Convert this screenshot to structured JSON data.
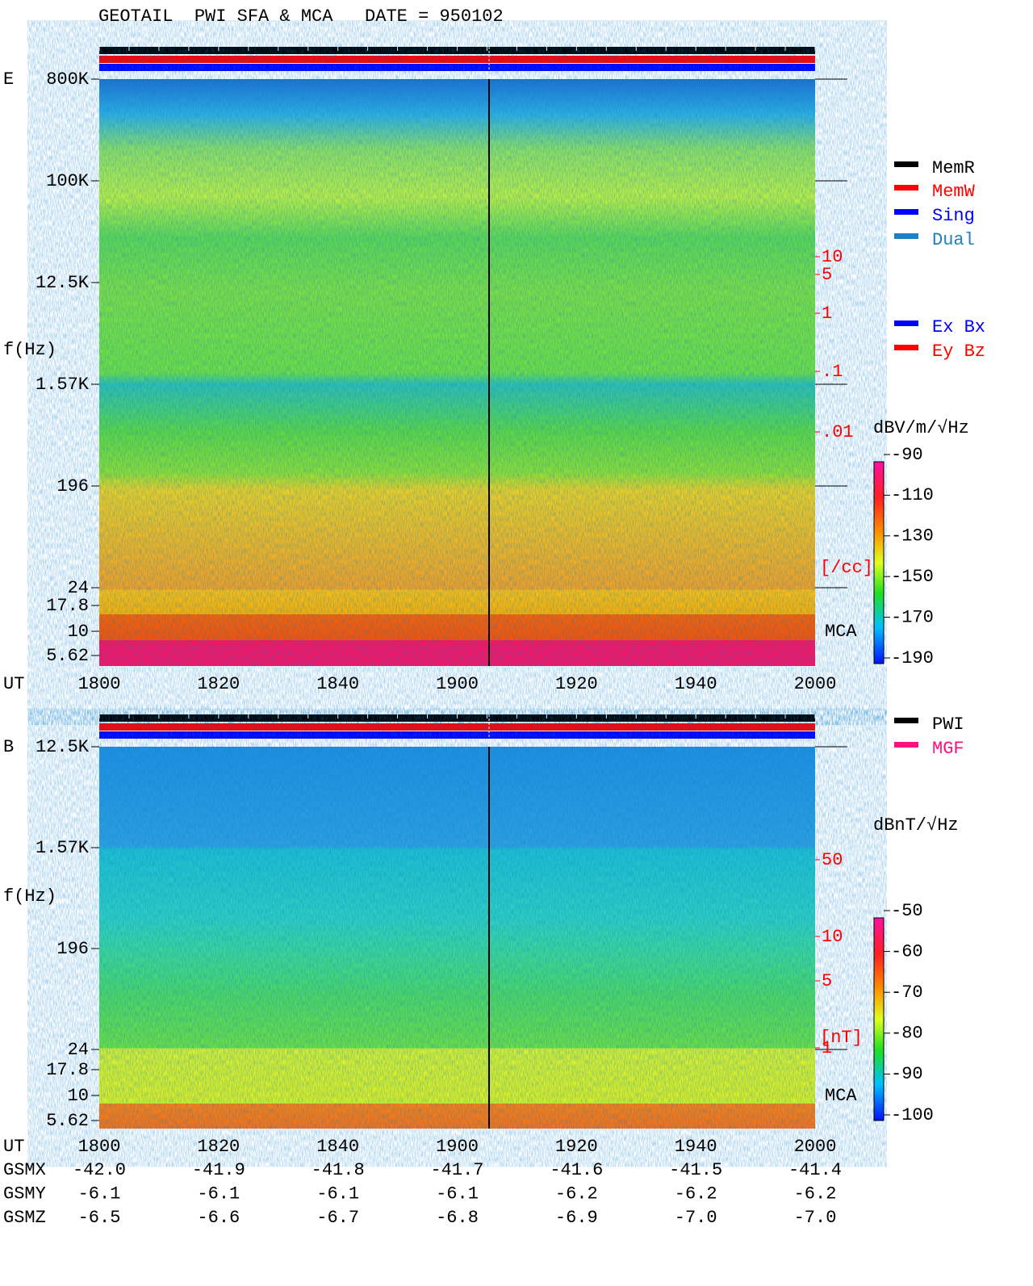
{
  "title": "GEOTAIL  PWI SFA & MCA   DATE = 950102",
  "legend_memory": [
    {
      "label": "MemR",
      "color": "#000000"
    },
    {
      "label": "MemW",
      "color": "#ff0000"
    },
    {
      "label": "Sing",
      "color": "#0000ff"
    },
    {
      "label": "Dual",
      "color": "#2080c0"
    }
  ],
  "legend_component": [
    {
      "label": "Ex Bx",
      "color": "#0000ff"
    },
    {
      "label": "Ey Bz",
      "color": "#ff0000"
    }
  ],
  "legend_instrument": [
    {
      "label": "PWI",
      "color": "#000000"
    },
    {
      "label": "MGF",
      "color": "#ff1080"
    }
  ],
  "panels": [
    {
      "label": "E",
      "y_axis_label": "f(Hz)",
      "frequency_ticks": [
        "800K",
        "100K",
        "12.5K",
        "1.57K",
        "196",
        "24",
        "17.8",
        "10",
        "5.62"
      ],
      "band_label": "MCA",
      "density_ticks": [
        "10",
        "5",
        "1",
        ".1",
        ".01"
      ],
      "density_unit": "[/cc]",
      "colorbar_title": "dBV/m/√Hz",
      "colorbar_ticks": [
        "-90",
        "-110",
        "-130",
        "-150",
        "-170",
        "-190"
      ],
      "time_axis_label": "UT",
      "time_ticks": [
        "1800",
        "1820",
        "1840",
        "1900",
        "1920",
        "1940",
        "2000"
      ]
    },
    {
      "label": "B",
      "y_axis_label": "f(Hz)",
      "frequency_ticks": [
        "12.5K",
        "1.57K",
        "196",
        "24",
        "17.8",
        "10",
        "5.62"
      ],
      "band_label": "MCA",
      "density_ticks": [
        "50",
        "10",
        "5",
        "1"
      ],
      "density_unit": "[nT]",
      "colorbar_title": "dBnT/√Hz",
      "colorbar_ticks": [
        "-50",
        "-60",
        "-70",
        "-80",
        "-90",
        "-100"
      ],
      "time_axis_label": "UT",
      "time_ticks": [
        "1800",
        "1820",
        "1840",
        "1900",
        "1920",
        "1940",
        "2000"
      ]
    }
  ],
  "orbit": [
    {
      "label": "GSMX",
      "values": [
        "-42.0",
        "-41.9",
        "-41.8",
        "-41.7",
        "-41.6",
        "-41.5",
        "-41.4"
      ]
    },
    {
      "label": "GSMY",
      "values": [
        "-6.1",
        "-6.1",
        "-6.1",
        "-6.1",
        "-6.2",
        "-6.2",
        "-6.2"
      ]
    },
    {
      "label": "GSMZ",
      "values": [
        "-6.5",
        "-6.6",
        "-6.7",
        "-6.8",
        "-6.9",
        "-7.0",
        "-7.0"
      ]
    }
  ]
}
